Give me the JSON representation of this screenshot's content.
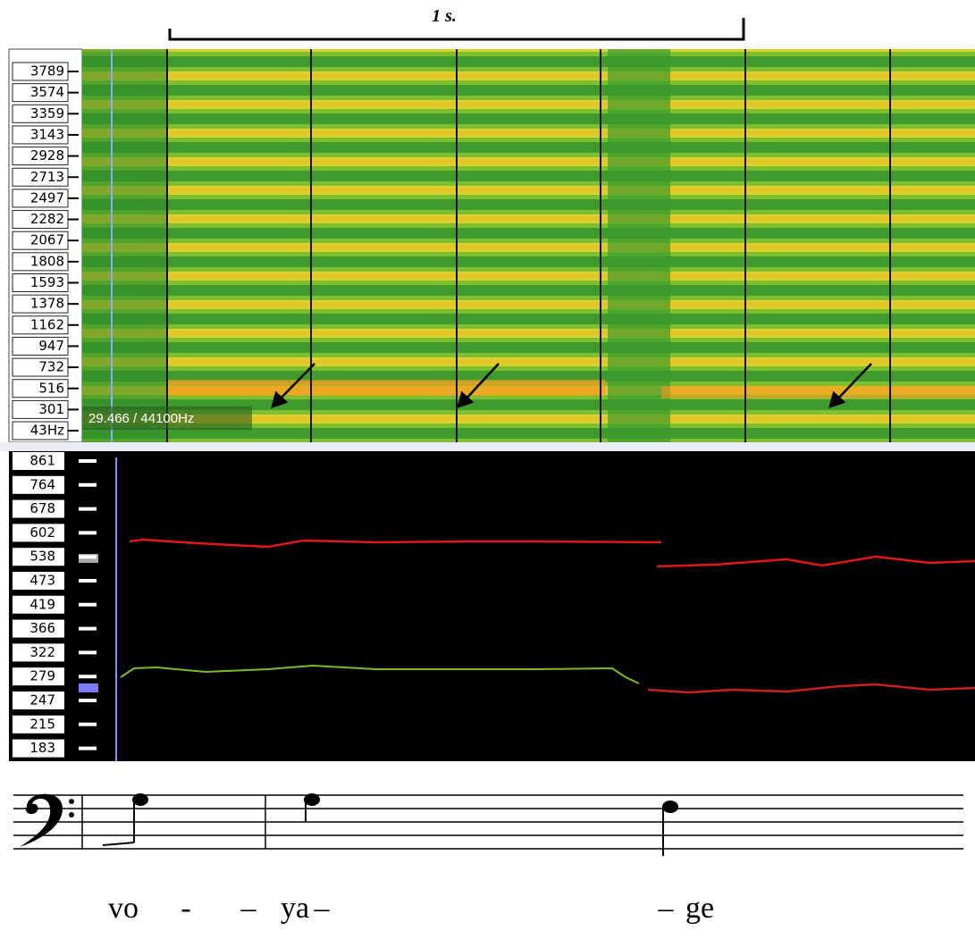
{
  "scale_bar": {
    "label": "1 s."
  },
  "spectrogram": {
    "frequency_labels": [
      "3789",
      "3574",
      "3359",
      "3143",
      "2928",
      "2713",
      "2497",
      "2282",
      "2067",
      "1808",
      "1593",
      "1378",
      "1162",
      "947",
      "732",
      "516",
      "301",
      "43Hz"
    ],
    "readout": "29.466 / 44100Hz"
  },
  "pitch_track": {
    "frequency_labels": [
      "861",
      "764",
      "678",
      "602",
      "538",
      "473",
      "419",
      "366",
      "322",
      "279",
      "247",
      "215",
      "183"
    ]
  },
  "score": {
    "lyrics": [
      "vo",
      "-",
      "–",
      "ya",
      "–",
      "–",
      "ge"
    ]
  }
}
